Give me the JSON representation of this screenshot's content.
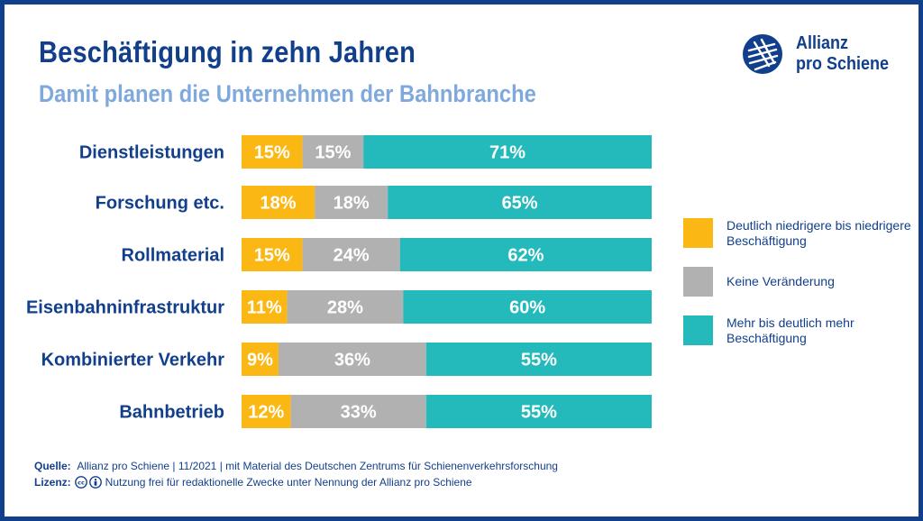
{
  "title": "Beschäftigung in zehn Jahren",
  "subtitle": "Damit planen die Unternehmen der Bahnbranche",
  "logo": {
    "line1": "Allianz",
    "line2": "pro Schiene",
    "icon": "allianz-pro-schiene-logo-icon"
  },
  "colors": {
    "orange": "#fbb814",
    "gray": "#b1b1b1",
    "teal": "#24b9bb",
    "navy": "#123f8c",
    "subtitle": "#7fa9dd"
  },
  "legend": [
    {
      "label": "Deutlich niedrigere bis niedrigere Beschäftigung",
      "color": "#fbb814"
    },
    {
      "label": "Keine Veränderung",
      "color": "#b1b1b1"
    },
    {
      "label": "Mehr bis deutlich mehr Beschäftigung",
      "color": "#24b9bb"
    }
  ],
  "chart_data": {
    "type": "bar",
    "orientation": "horizontal",
    "stacked": true,
    "categories": [
      "Dienstleistungen",
      "Forschung etc.",
      "Rollmaterial",
      "Eisenbahninfrastruktur",
      "Kombinierter Verkehr",
      "Bahnbetrieb"
    ],
    "series": [
      {
        "name": "Deutlich niedrigere bis niedrigere Beschäftigung",
        "color": "#fbb814",
        "values": [
          15,
          18,
          15,
          11,
          9,
          12
        ]
      },
      {
        "name": "Keine Veränderung",
        "color": "#b1b1b1",
        "values": [
          15,
          18,
          24,
          28,
          36,
          33
        ]
      },
      {
        "name": "Mehr bis deutlich mehr Beschäftigung",
        "color": "#24b9bb",
        "values": [
          71,
          65,
          62,
          60,
          55,
          55
        ]
      }
    ],
    "value_suffix": "%",
    "grid": false,
    "legend_position": "right"
  },
  "footer": {
    "source_label": "Quelle:",
    "source_text": "Allianz pro Schiene | 11/2021 | mit Material des Deutschen Zentrums für Schienenverkehrsforschung",
    "license_label": "Lizenz:",
    "license_text": "Nutzung frei für redaktionelle Zwecke unter Nennung der Allianz pro Schiene"
  }
}
